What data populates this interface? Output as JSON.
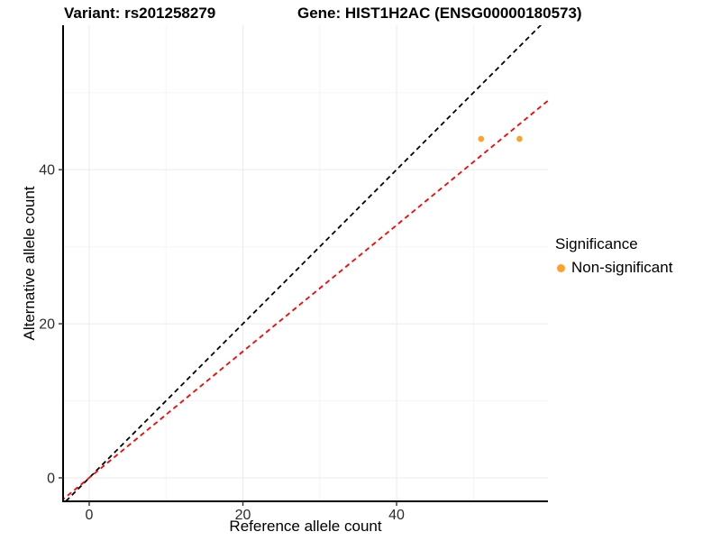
{
  "title": {
    "variant": "Variant: rs201258279",
    "gene": "Gene: HIST1H2AC (ENSG00000180573)"
  },
  "axes": {
    "x": {
      "label": "Reference allele count"
    },
    "y": {
      "label": "Alternative allele count"
    }
  },
  "legend": {
    "title": "Significance",
    "items": [
      {
        "label": "Non-significant",
        "color": "#FFA126"
      }
    ]
  },
  "colors": {
    "background": "#FFFFFF",
    "axis_line": "#000000",
    "tick_mark": "#333333",
    "tick_text": "#2B2B2B",
    "grid_major": "#EBEBEB",
    "grid_minor": "#F5F5F5",
    "point": "#FFA126",
    "identity_line": "#000000",
    "fit_line": "#FF0000"
  },
  "chart_data": {
    "type": "scatter",
    "title": "Variant: rs201258279 | Gene: HIST1H2AC (ENSG00000180573)",
    "xlabel": "Reference allele count",
    "ylabel": "Alternative allele count",
    "xlim": [
      -3.4,
      59.7
    ],
    "ylim": [
      -3.05,
      58.75
    ],
    "x_ticks": [
      0,
      20,
      40
    ],
    "y_ticks": [
      0,
      20,
      40
    ],
    "x_minor_ticks": [
      10,
      30,
      50
    ],
    "y_minor_ticks": [
      10,
      30,
      50
    ],
    "grid": "on",
    "legend_position": "right",
    "series": [
      {
        "name": "Non-significant",
        "color": "#FFA126",
        "points": [
          [
            51,
            44
          ],
          [
            56,
            44
          ]
        ]
      }
    ],
    "lines": [
      {
        "name": "identity-line",
        "slope": 1.0,
        "intercept": 0,
        "style": "dashed",
        "color": "#000000"
      },
      {
        "name": "fit-line",
        "slope": 0.82,
        "intercept": 0,
        "style": "dashed",
        "color": "#FF0000"
      }
    ]
  }
}
